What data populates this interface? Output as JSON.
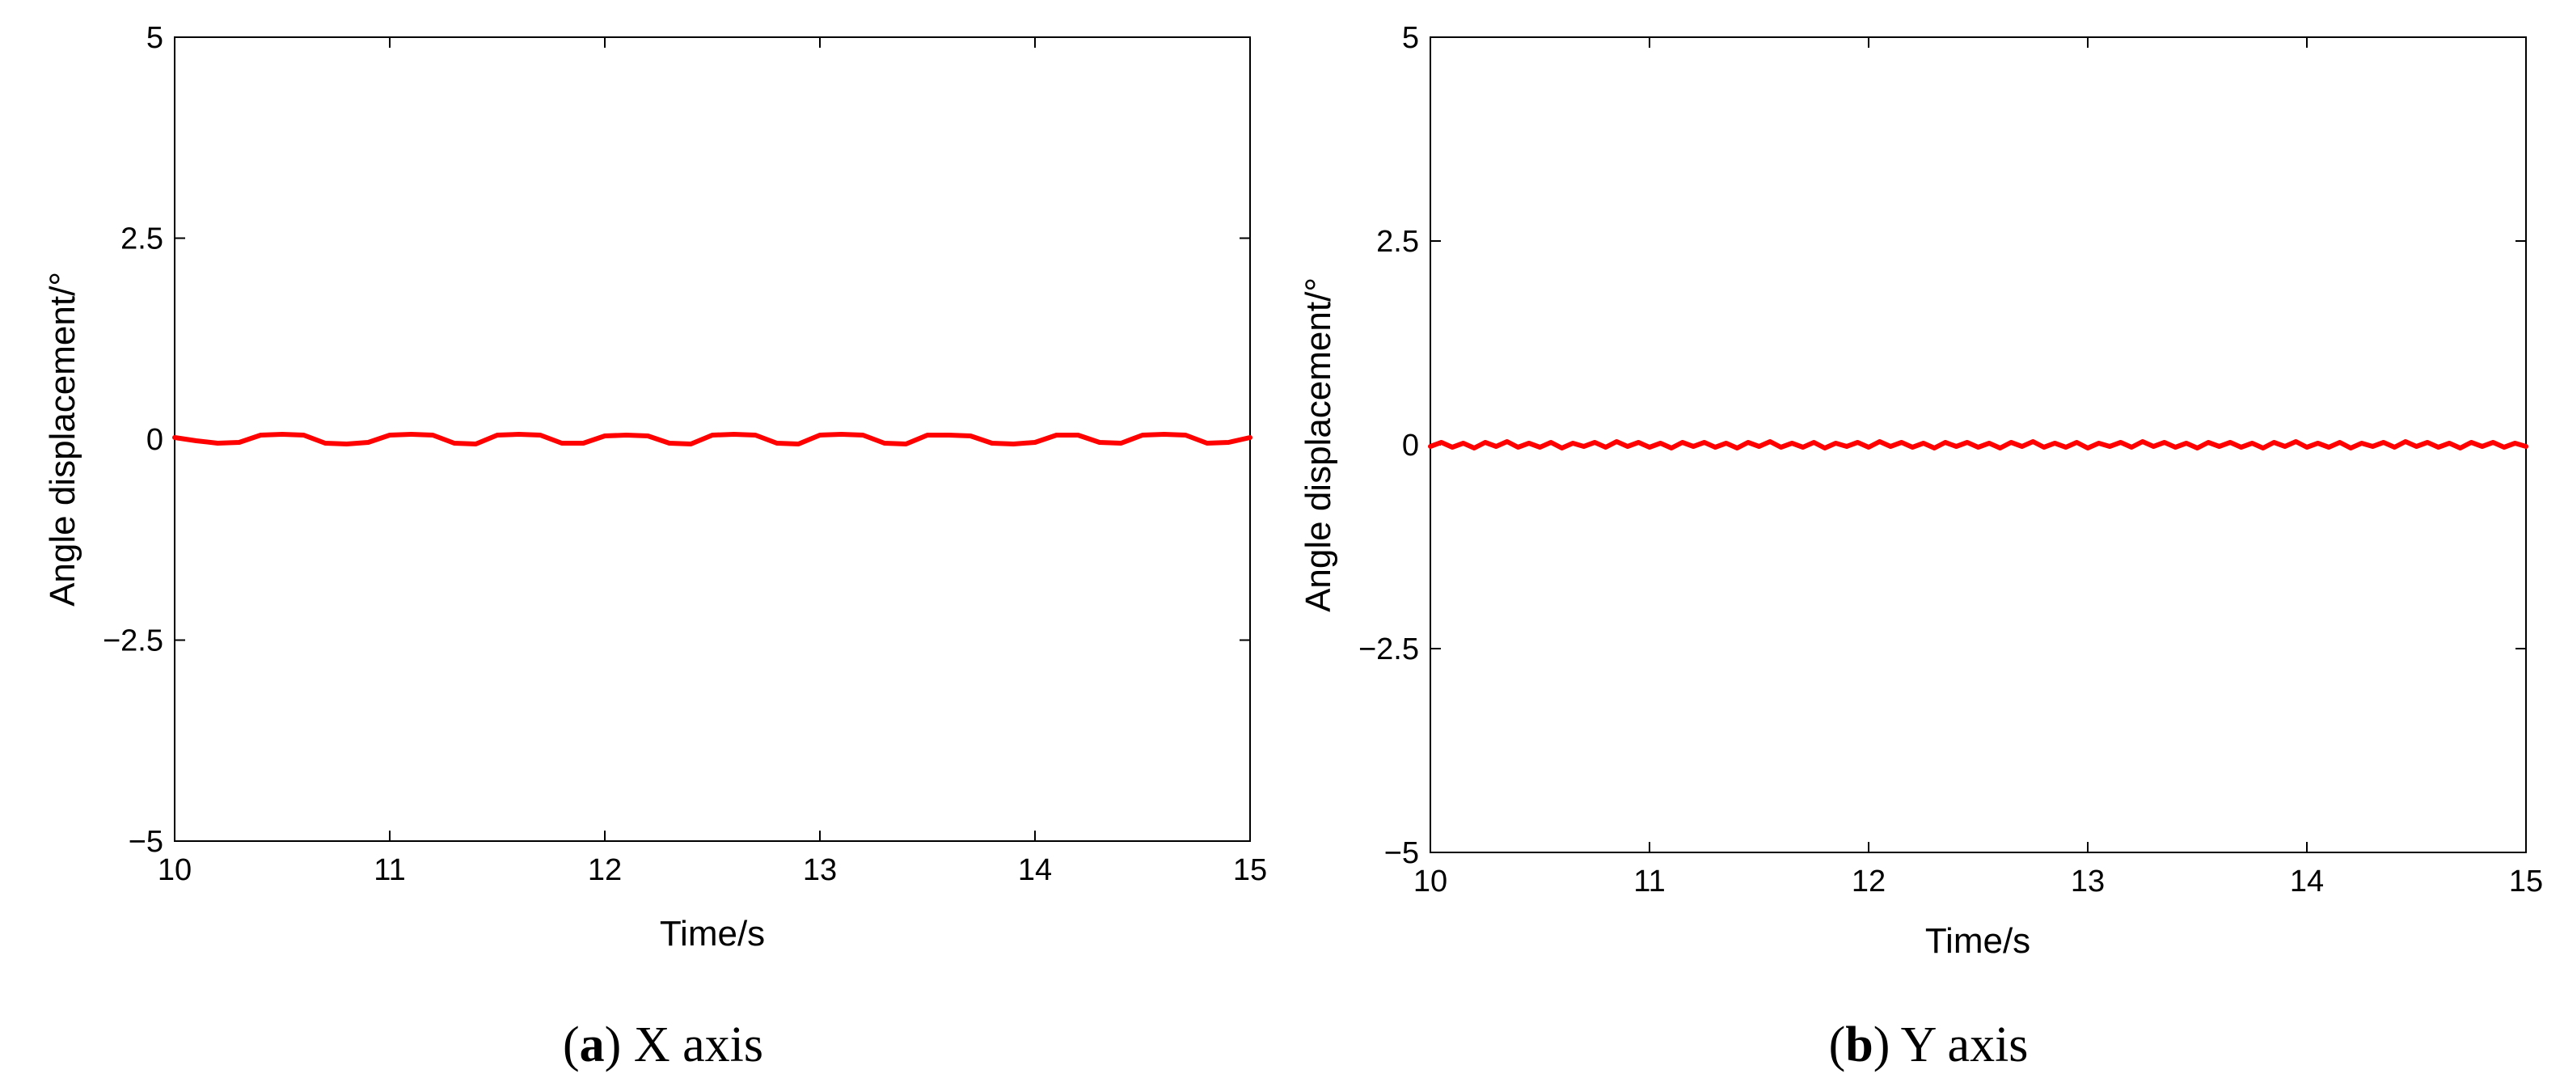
{
  "chart_data": [
    {
      "type": "line",
      "caption_letter": "a",
      "caption_text": " X axis",
      "xlabel": "Time/s",
      "ylabel": "Angle displacement/°",
      "xlim": [
        10,
        15
      ],
      "ylim": [
        -5,
        5
      ],
      "xticks": [
        10,
        11,
        12,
        13,
        14,
        15
      ],
      "yticks": [
        -5,
        -2.5,
        0,
        2.5,
        5
      ],
      "ytick_labels": [
        "−5",
        "−2.5",
        "0",
        "2.5",
        "5"
      ],
      "grid": false,
      "series": [
        {
          "color": "#ff0000",
          "x": [
            10.0,
            10.1,
            10.2,
            10.3,
            10.4,
            10.5,
            10.6,
            10.7,
            10.8,
            10.9,
            11.0,
            11.1,
            11.2,
            11.3,
            11.4,
            11.5,
            11.6,
            11.7,
            11.8,
            11.9,
            12.0,
            12.1,
            12.2,
            12.3,
            12.4,
            12.5,
            12.6,
            12.7,
            12.8,
            12.9,
            13.0,
            13.1,
            13.2,
            13.3,
            13.4,
            13.5,
            13.6,
            13.7,
            13.8,
            13.9,
            14.0,
            14.1,
            14.2,
            14.3,
            14.4,
            14.5,
            14.6,
            14.7,
            14.8,
            14.9,
            15.0
          ],
          "values": [
            0.02,
            -0.02,
            -0.05,
            -0.04,
            0.05,
            0.06,
            0.05,
            -0.05,
            -0.06,
            -0.04,
            0.05,
            0.06,
            0.05,
            -0.05,
            -0.06,
            0.05,
            0.06,
            0.05,
            -0.05,
            -0.05,
            0.04,
            0.05,
            0.04,
            -0.05,
            -0.06,
            0.05,
            0.06,
            0.05,
            -0.05,
            -0.06,
            0.05,
            0.06,
            0.05,
            -0.05,
            -0.06,
            0.05,
            0.05,
            0.04,
            -0.05,
            -0.06,
            -0.04,
            0.05,
            0.05,
            -0.04,
            -0.05,
            0.05,
            0.06,
            0.05,
            -0.05,
            -0.04,
            0.02
          ]
        }
      ]
    },
    {
      "type": "line",
      "caption_letter": "b",
      "caption_text": " Y axis",
      "xlabel": "Time/s",
      "ylabel": "Angle displacement/°",
      "xlim": [
        10,
        15
      ],
      "ylim": [
        -5,
        5
      ],
      "xticks": [
        10,
        11,
        12,
        13,
        14,
        15
      ],
      "yticks": [
        -5,
        -2.5,
        0,
        2.5,
        5
      ],
      "ytick_labels": [
        "−5",
        "−2.5",
        "0",
        "2.5",
        "5"
      ],
      "grid": false,
      "series": [
        {
          "color": "#ff0000",
          "x": [
            10.0,
            10.05,
            10.1,
            10.15,
            10.2,
            10.25,
            10.3,
            10.35,
            10.4,
            10.45,
            10.5,
            10.55,
            10.6,
            10.65,
            10.7,
            10.75,
            10.8,
            10.85,
            10.9,
            10.95,
            11.0,
            11.05,
            11.1,
            11.15,
            11.2,
            11.25,
            11.3,
            11.35,
            11.4,
            11.45,
            11.5,
            11.55,
            11.6,
            11.65,
            11.7,
            11.75,
            11.8,
            11.85,
            11.9,
            11.95,
            12.0,
            12.05,
            12.1,
            12.15,
            12.2,
            12.25,
            12.3,
            12.35,
            12.4,
            12.45,
            12.5,
            12.55,
            12.6,
            12.65,
            12.7,
            12.75,
            12.8,
            12.85,
            12.9,
            12.95,
            13.0,
            13.05,
            13.1,
            13.15,
            13.2,
            13.25,
            13.3,
            13.35,
            13.4,
            13.45,
            13.5,
            13.55,
            13.6,
            13.65,
            13.7,
            13.75,
            13.8,
            13.85,
            13.9,
            13.95,
            14.0,
            14.05,
            14.1,
            14.15,
            14.2,
            14.25,
            14.3,
            14.35,
            14.4,
            14.45,
            14.5,
            14.55,
            14.6,
            14.65,
            14.7,
            14.75,
            14.8,
            14.85,
            14.9,
            14.95,
            15.0
          ],
          "values": [
            -0.02,
            0.03,
            -0.03,
            0.02,
            -0.04,
            0.03,
            -0.02,
            0.04,
            -0.03,
            0.02,
            -0.03,
            0.03,
            -0.04,
            0.02,
            -0.02,
            0.03,
            -0.03,
            0.04,
            -0.02,
            0.03,
            -0.03,
            0.02,
            -0.04,
            0.03,
            -0.02,
            0.03,
            -0.03,
            0.02,
            -0.04,
            0.03,
            -0.02,
            0.04,
            -0.03,
            0.02,
            -0.03,
            0.03,
            -0.04,
            0.02,
            -0.02,
            0.03,
            -0.03,
            0.04,
            -0.02,
            0.03,
            -0.03,
            0.02,
            -0.04,
            0.03,
            -0.02,
            0.03,
            -0.03,
            0.02,
            -0.04,
            0.03,
            -0.02,
            0.04,
            -0.03,
            0.02,
            -0.03,
            0.03,
            -0.04,
            0.02,
            -0.02,
            0.03,
            -0.03,
            0.04,
            -0.02,
            0.03,
            -0.03,
            0.02,
            -0.04,
            0.03,
            -0.02,
            0.03,
            -0.03,
            0.02,
            -0.04,
            0.03,
            -0.02,
            0.04,
            -0.03,
            0.02,
            -0.03,
            0.03,
            -0.04,
            0.02,
            -0.02,
            0.03,
            -0.03,
            0.04,
            -0.02,
            0.03,
            -0.03,
            0.02,
            -0.04,
            0.03,
            -0.02,
            0.03,
            -0.03,
            0.02,
            -0.02
          ]
        }
      ]
    }
  ]
}
